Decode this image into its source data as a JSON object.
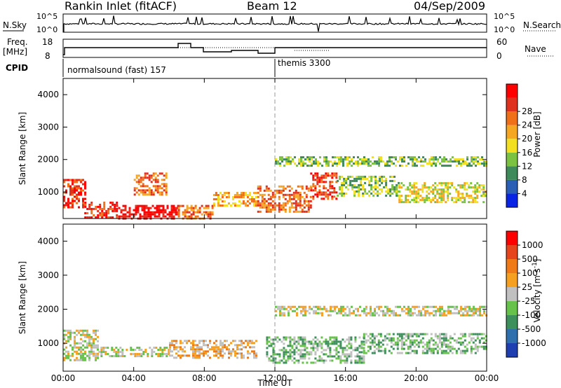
{
  "header": {
    "title": "Rankin Inlet (fitACF)",
    "beam": "Beam 12",
    "date": "04/Sep/2009"
  },
  "noise_panel": {
    "left_label": "N.Sky",
    "right_label": "N.Search",
    "left_ticks": [
      "10^5",
      "10^0"
    ],
    "right_ticks": [
      "10^5",
      "10^0"
    ]
  },
  "freq_panel": {
    "left_label_line1": "Freq.",
    "left_label_line2": "[MHz]",
    "right_label": "Nave",
    "left_ticks": [
      "18",
      "8"
    ],
    "right_ticks": [
      "60",
      "0"
    ]
  },
  "cpid_panel": {
    "label": "CPID",
    "segments": [
      {
        "start_hour": 0,
        "text": "normalsound (fast) 157"
      },
      {
        "start_hour": 12,
        "text": "themis 3300"
      }
    ]
  },
  "power_panel": {
    "ylabel": "Slant Range [km]",
    "yticks": [
      "1000",
      "2000",
      "3000",
      "4000"
    ],
    "colorbar_label": "Power [dB]",
    "colorbar_ticks": [
      "4",
      "8",
      "12",
      "16",
      "20",
      "24",
      "28"
    ]
  },
  "velocity_panel": {
    "ylabel": "Slant Range [km]",
    "yticks": [
      "1000",
      "2000",
      "3000",
      "4000"
    ],
    "colorbar_label": "Velocity  [m s",
    "colorbar_label_sup": "-1",
    "colorbar_label_end": "]",
    "colorbar_ticks": [
      "1000",
      "500",
      "100",
      "25",
      "-25",
      "-100",
      "-500",
      "-1000"
    ]
  },
  "xaxis": {
    "label": "Time UT",
    "ticks": [
      "00:00",
      "04:00",
      "08:00",
      "12:00",
      "16:00",
      "20:00",
      "00:00"
    ]
  },
  "colors": {
    "power_scale": [
      "#0a24e6",
      "#2a5fb5",
      "#3f8a5a",
      "#7cc242",
      "#f2e020",
      "#f5a623",
      "#f07019",
      "#e0301e",
      "#ff0000"
    ],
    "velocity_scale": [
      "#1f3fb0",
      "#2f6fae",
      "#3d8f5c",
      "#66c24a",
      "#c0c0c0",
      "#f5a020",
      "#f07a18",
      "#e5441c",
      "#ff0000"
    ]
  },
  "chart_data": {
    "type": "heatmap",
    "x_range_hours": [
      0,
      24
    ],
    "y_range_km": [
      180,
      4500
    ],
    "power_db": {
      "range": [
        0,
        32
      ],
      "blobs": [
        {
          "t_start": 0.0,
          "t_end": 1.2,
          "r_start": 500,
          "r_end": 1400,
          "value": 28
        },
        {
          "t_start": 1.2,
          "t_end": 3.0,
          "r_start": 200,
          "r_end": 700,
          "value": 26
        },
        {
          "t_start": 3.0,
          "t_end": 6.5,
          "r_start": 200,
          "r_end": 600,
          "value": 30
        },
        {
          "t_start": 4.0,
          "t_end": 5.8,
          "r_start": 900,
          "r_end": 1600,
          "value": 24
        },
        {
          "t_start": 6.5,
          "t_end": 8.5,
          "r_start": 200,
          "r_end": 600,
          "value": 22
        },
        {
          "t_start": 8.5,
          "t_end": 11.0,
          "r_start": 600,
          "r_end": 1000,
          "value": 20
        },
        {
          "t_start": 11.0,
          "t_end": 14.0,
          "r_start": 400,
          "r_end": 1200,
          "value": 24
        },
        {
          "t_start": 14.0,
          "t_end": 15.5,
          "r_start": 800,
          "r_end": 1600,
          "value": 26
        },
        {
          "t_start": 15.5,
          "t_end": 19.0,
          "r_start": 900,
          "r_end": 1500,
          "value": 14
        },
        {
          "t_start": 19.0,
          "t_end": 24.0,
          "r_start": 700,
          "r_end": 1300,
          "value": 16
        },
        {
          "t_start": 12.0,
          "t_end": 24.0,
          "r_start": 1800,
          "r_end": 2100,
          "value": 12
        }
      ]
    },
    "velocity_ms": {
      "range": [
        -1000,
        1000
      ],
      "blobs": [
        {
          "t_start": 0.0,
          "t_end": 2.0,
          "r_start": 500,
          "r_end": 1400,
          "value": 100
        },
        {
          "t_start": 2.0,
          "t_end": 6.0,
          "r_start": 600,
          "r_end": 900,
          "value": 0
        },
        {
          "t_start": 6.0,
          "t_end": 11.0,
          "r_start": 600,
          "r_end": 1100,
          "value": 200
        },
        {
          "t_start": 11.5,
          "t_end": 17.0,
          "r_start": 400,
          "r_end": 1200,
          "value": -300
        },
        {
          "t_start": 17.0,
          "t_end": 24.0,
          "r_start": 700,
          "r_end": 1300,
          "value": -250
        },
        {
          "t_start": 12.0,
          "t_end": 24.0,
          "r_start": 1800,
          "r_end": 2100,
          "value": 0
        }
      ]
    }
  }
}
